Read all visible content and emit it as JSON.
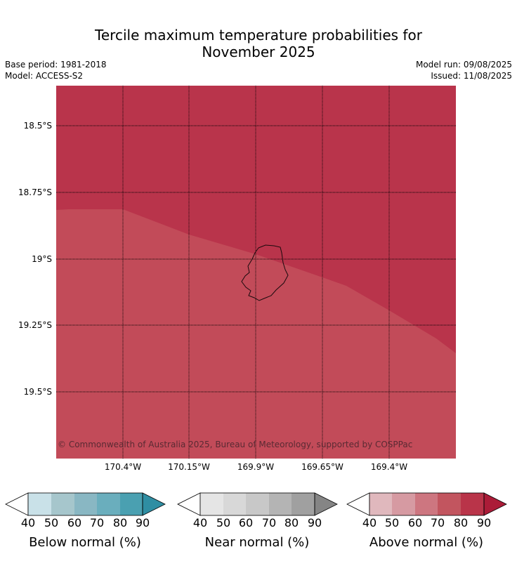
{
  "header": {
    "title_line1": "Tercile maximum temperature probabilities for",
    "title_line2": "November 2025",
    "base_period": "Base period: 1981-2018",
    "model": "Model: ACCESS-S2",
    "model_run": "Model run: 09/08/2025",
    "issued": "Issued: 11/08/2025"
  },
  "map": {
    "lat_labels": [
      "18.5°S",
      "18.75°S",
      "19°S",
      "19.25°S",
      "19.5°S"
    ],
    "lon_labels": [
      "170.4°W",
      "170.15°W",
      "169.9°W",
      "169.65°W",
      "169.4°W"
    ],
    "region_colors": {
      "dark_above": "#b9344b",
      "light_above": "#c24b59"
    },
    "copyright": "© Commonwealth of Australia 2025, Bureau of Meteorology, supported by COSPPac"
  },
  "legends": [
    {
      "title": "Below normal (%)",
      "ticks": [
        "40",
        "50",
        "60",
        "70",
        "80",
        "90"
      ],
      "colors": [
        "#ffffff",
        "#c9e1e8",
        "#a6c6cc",
        "#89b7c3",
        "#6aaebd",
        "#4aa0b1",
        "#2f8ea3"
      ]
    },
    {
      "title": "Near normal (%)",
      "ticks": [
        "40",
        "50",
        "60",
        "70",
        "80",
        "90"
      ],
      "colors": [
        "#ffffff",
        "#e5e5e5",
        "#d8d8d8",
        "#c8c8c8",
        "#b4b4b4",
        "#a0a0a0",
        "#858585"
      ]
    },
    {
      "title": "Above normal (%)",
      "ticks": [
        "40",
        "50",
        "60",
        "70",
        "80",
        "90"
      ],
      "colors": [
        "#ffffff",
        "#e0b8bd",
        "#d69aa2",
        "#cd7680",
        "#c2555f",
        "#b93449",
        "#ab1c38"
      ]
    }
  ]
}
